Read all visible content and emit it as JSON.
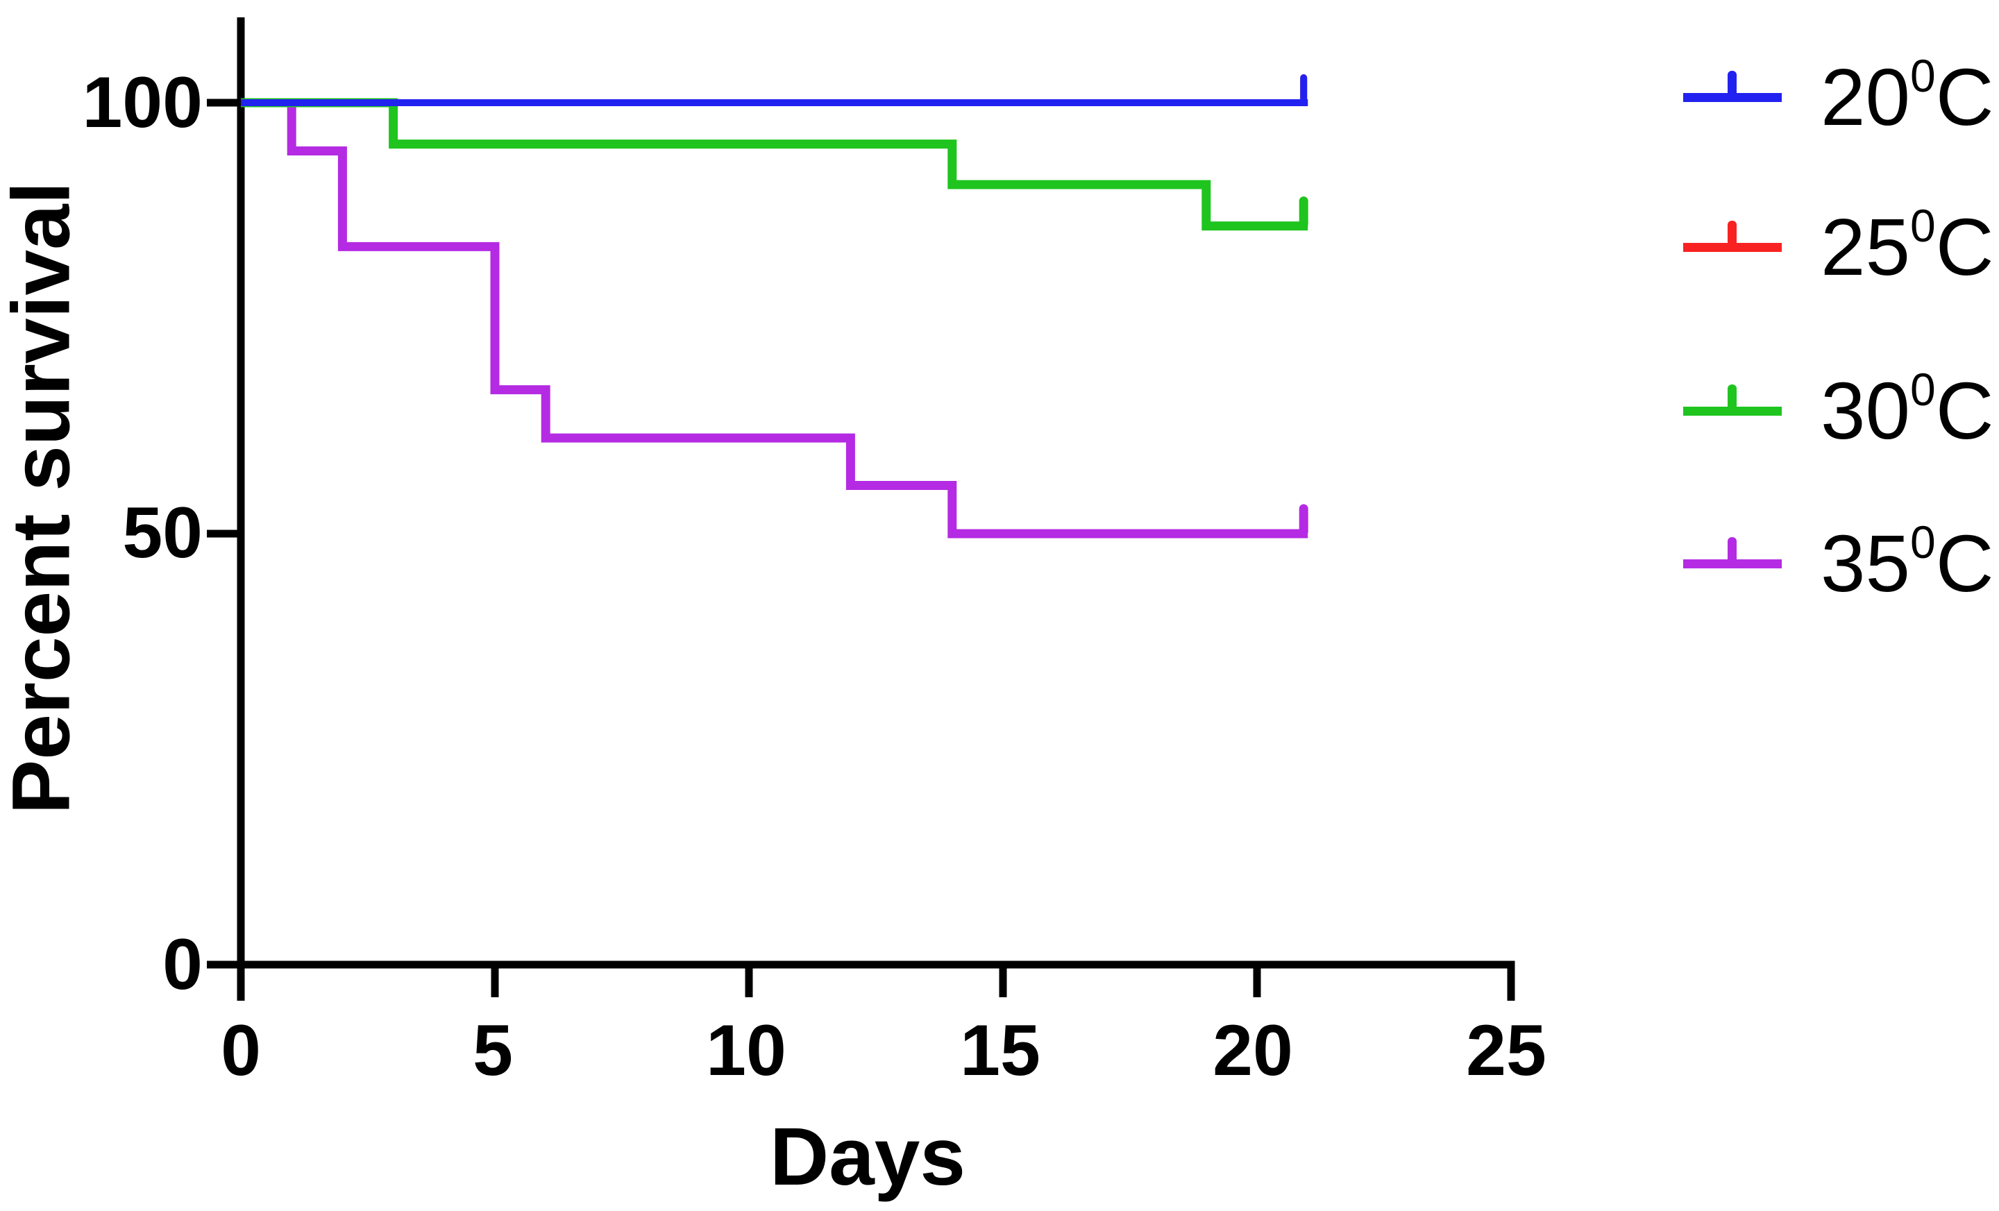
{
  "y_axis": {
    "label": "Percent survival",
    "ticks": [
      "100",
      "50",
      "0"
    ]
  },
  "x_axis": {
    "label": "Days",
    "ticks": [
      "0",
      "5",
      "10",
      "15",
      "20",
      "25"
    ]
  },
  "legend": {
    "position": "right",
    "items": [
      {
        "temp": "20",
        "sup": "0",
        "unit": "C"
      },
      {
        "temp": "25",
        "sup": "0",
        "unit": "C"
      },
      {
        "temp": "30",
        "sup": "0",
        "unit": "C"
      },
      {
        "temp": "35",
        "sup": "0",
        "unit": "C"
      }
    ]
  },
  "chart_data": {
    "type": "line",
    "subtype": "kaplan-meier-survival-step",
    "title": "",
    "xlabel": "Days",
    "ylabel": "Percent survival",
    "xlim": [
      0,
      25
    ],
    "ylim": [
      0,
      100
    ],
    "x_ticks": [
      0,
      5,
      10,
      15,
      20,
      25
    ],
    "y_ticks": [
      100,
      50,
      0
    ],
    "grid": false,
    "axis_color": "#000000",
    "background": "#ffffff",
    "legend_position": "right",
    "series": [
      {
        "name": "20⁰C",
        "color": "#2222F0",
        "stroke_px": 10,
        "steps": [
          [
            0,
            100
          ],
          [
            21,
            100
          ]
        ],
        "censor_tick_at_day": 21
      },
      {
        "name": "25⁰C",
        "color": "#F92222",
        "stroke_px": 10,
        "steps": [
          [
            0,
            100
          ],
          [
            21,
            100
          ]
        ],
        "censor_tick_at_day": 21,
        "note": "overlapped by the 20⁰C line at 100%"
      },
      {
        "name": "30⁰C",
        "color": "#1FC41F",
        "stroke_px": 13,
        "steps": [
          [
            0,
            100
          ],
          [
            3,
            95.2
          ],
          [
            14,
            90.5
          ],
          [
            19,
            85.7
          ],
          [
            21,
            85.7
          ]
        ],
        "censor_tick_at_day": 21
      },
      {
        "name": "35⁰C",
        "color": "#B42BE3",
        "stroke_px": 13,
        "steps": [
          [
            0,
            100
          ],
          [
            1,
            94.4
          ],
          [
            2,
            83.3
          ],
          [
            5,
            66.7
          ],
          [
            6,
            61.1
          ],
          [
            12,
            55.6
          ],
          [
            14,
            50
          ],
          [
            21,
            50
          ]
        ],
        "censor_tick_at_day": 21
      }
    ]
  }
}
